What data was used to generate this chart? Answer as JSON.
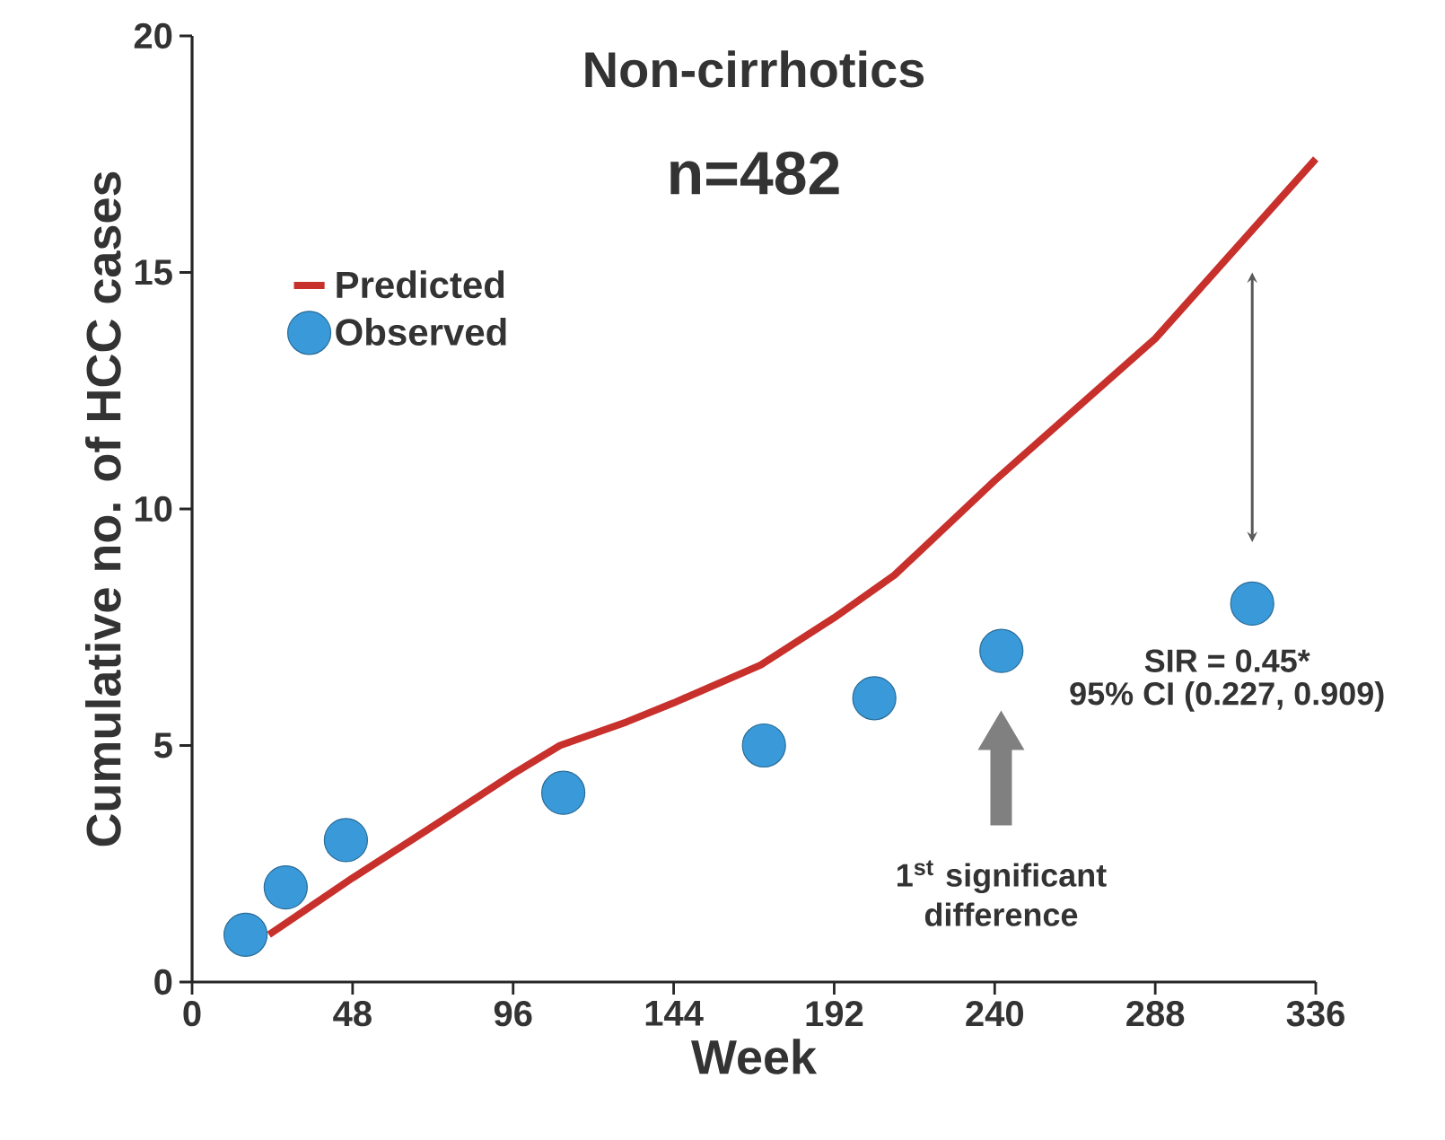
{
  "chart_data": {
    "type": "line",
    "title": "Non-cirrhotics",
    "subtitle": "n=482",
    "xlabel": "Week",
    "ylabel": "Cumulative no. of HCC cases",
    "xlim": [
      0,
      336
    ],
    "xticks": [
      0,
      48,
      96,
      144,
      192,
      240,
      288,
      336
    ],
    "ylim": [
      0,
      20
    ],
    "yticks": [
      0,
      5,
      10,
      15,
      20
    ],
    "grid": false,
    "legend": "top left",
    "series": [
      {
        "name": "Predicted",
        "color": "#c8302c",
        "line_style": "solid",
        "marker": "none",
        "x": [
          23,
          48,
          70,
          96,
          110,
          130,
          144,
          170,
          192,
          210,
          240,
          288,
          336
        ],
        "values": [
          1.0,
          2.2,
          3.2,
          4.4,
          5.0,
          5.5,
          5.9,
          6.7,
          7.7,
          8.6,
          10.6,
          13.6,
          17.4
        ]
      },
      {
        "name": "Observed",
        "type": "scatter",
        "color": "#3a9ad9",
        "marker": "circle",
        "x": [
          16,
          28,
          46,
          111,
          171,
          204,
          242,
          317
        ],
        "values": [
          1,
          2,
          3,
          4,
          5,
          6,
          7,
          8
        ]
      }
    ],
    "annotations": [
      {
        "text": "SIR = 0.45*",
        "x": 317,
        "y": 8
      },
      "95% CI (0.227, 0.909)",
      "1$^{st}$ significant difference"
    ]
  }
}
